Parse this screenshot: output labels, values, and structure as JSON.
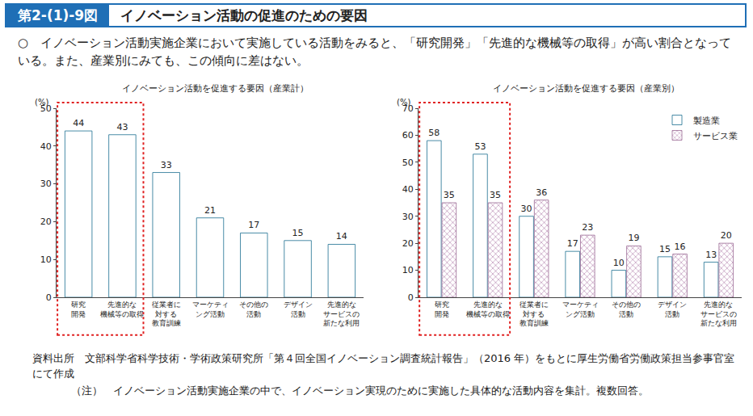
{
  "header": {
    "figure_number": "第2-(1)-9図",
    "title": "イノベーション活動の促進のための要因"
  },
  "summary": "○　イノベーション活動実施企業において実施している活動をみると、「研究開発」「先進的な機械等の取得」が高い割合となっている。また、産業別にみても、この傾向に差はない。",
  "chart_data": [
    {
      "type": "bar",
      "title": "イノベーション活動を促進する要因（産業計）",
      "y_label": "(%)",
      "categories": [
        "研究\n開発",
        "先進的な\n機械等の取得",
        "従業者に\n対する\n教育訓練",
        "マーケティ\nング活動",
        "その他の\n活動",
        "デザイン\n活動",
        "先進的な\nサービスの\n新たな利用"
      ],
      "values": [
        44,
        43,
        33,
        21,
        17,
        15,
        14
      ],
      "color": "#3aa3c9",
      "ylim": [
        0,
        50
      ],
      "yticks": [
        0,
        10,
        20,
        30,
        40,
        50
      ],
      "grid": false,
      "data_labels": true
    },
    {
      "type": "bar",
      "title": "イノベーション活動を促進する要因（産業別）",
      "y_label": "(%)",
      "categories": [
        "研究\n開発",
        "先進的な\n機械等の取得",
        "従業者に\n対する\n教育訓練",
        "マーケティ\nング活動",
        "その他の\n活動",
        "デザイン\n活動",
        "先進的な\nサービスの\n新たな利用"
      ],
      "series": [
        {
          "name": "製造業",
          "color": "#3aa3c9",
          "values": [
            58,
            53,
            30,
            17,
            10,
            15,
            13
          ]
        },
        {
          "name": "サービス業",
          "color": "#f4dbe9",
          "values": [
            35,
            35,
            36,
            23,
            19,
            16,
            20
          ]
        }
      ],
      "ylim": [
        0,
        70
      ],
      "yticks": [
        0,
        10,
        20,
        30,
        40,
        50,
        60,
        70
      ],
      "grid": false,
      "data_labels": true,
      "legend": "top right"
    }
  ],
  "source": "資料出所　文部科学省科学技術・学術政策研究所「第４回全国イノベーション調査統計報告」（2016 年）をもとに厚生労働省労働政策担当参事官室にて作成",
  "note": "（注）　イノベーション活動実施企業の中で、イノベーション実現のために実施した具体的な活動内容を集計。複数回答。"
}
